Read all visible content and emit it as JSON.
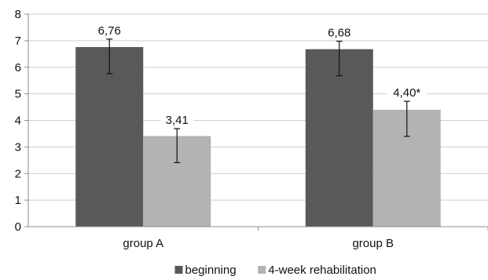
{
  "chart_data": {
    "type": "bar",
    "categories": [
      "group A",
      "group B"
    ],
    "series": [
      {
        "name": "beginning",
        "color": "#595959",
        "values": [
          6.76,
          6.68
        ],
        "labels": [
          "6,76",
          "6,68"
        ],
        "error_low": [
          5.76,
          5.68
        ],
        "error_high": [
          7.06,
          6.98
        ]
      },
      {
        "name": "4-week rehabilitation",
        "color": "#b3b3b3",
        "values": [
          3.41,
          4.4
        ],
        "labels": [
          "3,41",
          "4,40*"
        ],
        "error_low": [
          2.41,
          3.4
        ],
        "error_high": [
          3.69,
          4.72
        ]
      }
    ],
    "ylim": [
      0,
      8
    ],
    "yticks": [
      "0",
      "1",
      "2",
      "3",
      "4",
      "5",
      "6",
      "7",
      "8"
    ],
    "grid": true,
    "legend": "bottom"
  }
}
